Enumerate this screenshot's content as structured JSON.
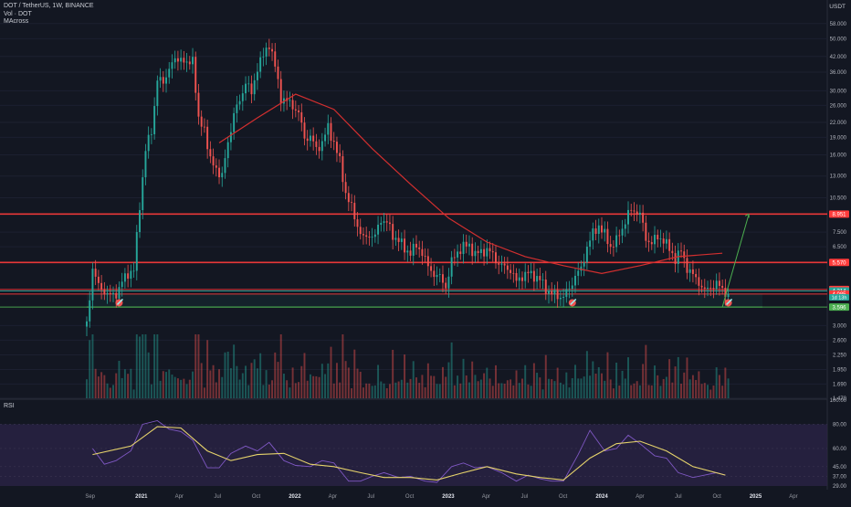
{
  "header": {
    "symbol_line": "DOT / TetherUS, 1W, BINANCE",
    "vol_line": "Vol · DOT",
    "ma_line": "MAcross",
    "currency": "USDT"
  },
  "rsi_label": "RSI",
  "colors": {
    "background": "#131722",
    "up": "#26a69a",
    "down": "#ef5350",
    "ma": "#d32f2f",
    "level_line": "#ff3b3b",
    "support": "#4caf50",
    "rsi_line": "#7e57c2",
    "rsi_ma": "#e6d36b",
    "rsi_band": "#2a2346"
  },
  "chart_data": [
    {
      "type": "candlestick",
      "title": "DOT / TetherUS, 1W, BINANCE",
      "y_scale": "log",
      "ylim": [
        1.47,
        68
      ],
      "y_ticks": [
        "58.000",
        "50.000",
        "42.000",
        "36.000",
        "30.000",
        "26.000",
        "22.000",
        "19.000",
        "16.000",
        "13.000",
        "10.500",
        "8.951",
        "7.500",
        "6.500",
        "5.570",
        "4.274",
        "4.214",
        "4.085",
        "3.000",
        "2.600",
        "2.250",
        "1.950",
        "1.690",
        "1.470"
      ],
      "x_ticks": [
        "Sep",
        "2021",
        "Apr",
        "Jul",
        "Oct",
        "2022",
        "Apr",
        "Jul",
        "Oct",
        "2023",
        "Apr",
        "Jul",
        "Oct",
        "2024",
        "Apr",
        "Jul",
        "Oct",
        "2025",
        "Apr"
      ],
      "levels": [
        {
          "label": "8.951",
          "value": 8.951,
          "color": "#ff3b3b"
        },
        {
          "label": "5.570",
          "value": 5.57,
          "color": "#ff3b3b"
        },
        {
          "label": "4.274",
          "value": 4.274,
          "color": "#ff3b3b"
        },
        {
          "label": "4.214",
          "value": 4.214,
          "color": "#26a69a"
        },
        {
          "label": "4.085",
          "value": 4.085,
          "color": "#ff3b3b"
        },
        {
          "label": "3.596",
          "value": 3.596,
          "color": "#4caf50"
        }
      ],
      "countdown_label": "1d 13h",
      "close_price_path": [
        [
          "2020-08-24",
          3.0
        ],
        [
          "2020-09-07",
          5.3
        ],
        [
          "2020-09-21",
          4.4
        ],
        [
          "2020-10-05",
          4.2
        ],
        [
          "2020-10-19",
          4.0
        ],
        [
          "2020-11-02",
          4.1
        ],
        [
          "2020-11-16",
          4.6
        ],
        [
          "2020-11-30",
          5.0
        ],
        [
          "2020-12-14",
          5.2
        ],
        [
          "2020-12-28",
          9.7
        ],
        [
          "2021-01-11",
          17.0
        ],
        [
          "2021-01-25",
          20.0
        ],
        [
          "2021-02-08",
          34.0
        ],
        [
          "2021-02-22",
          32.0
        ],
        [
          "2021-03-08",
          38.0
        ],
        [
          "2021-03-22",
          40.0
        ],
        [
          "2021-04-05",
          42.0
        ],
        [
          "2021-04-19",
          38.0
        ],
        [
          "2021-05-03",
          42.0
        ],
        [
          "2021-05-17",
          22.0
        ],
        [
          "2021-05-31",
          21.0
        ],
        [
          "2021-06-14",
          15.0
        ],
        [
          "2021-06-28",
          14.0
        ],
        [
          "2021-07-12",
          13.0
        ],
        [
          "2021-07-26",
          18.0
        ],
        [
          "2021-08-09",
          24.0
        ],
        [
          "2021-08-23",
          27.0
        ],
        [
          "2021-09-06",
          33.0
        ],
        [
          "2021-09-20",
          29.0
        ],
        [
          "2021-10-04",
          38.0
        ],
        [
          "2021-10-18",
          42.0
        ],
        [
          "2021-11-01",
          48.0
        ],
        [
          "2021-11-15",
          38.0
        ],
        [
          "2021-11-29",
          28.0
        ],
        [
          "2021-12-13",
          27.0
        ],
        [
          "2021-12-27",
          26.0
        ],
        [
          "2022-01-10",
          24.0
        ],
        [
          "2022-01-24",
          19.0
        ],
        [
          "2022-02-07",
          19.0
        ],
        [
          "2022-02-21",
          17.0
        ],
        [
          "2022-03-07",
          18.0
        ],
        [
          "2022-03-21",
          21.0
        ],
        [
          "2022-04-04",
          18.0
        ],
        [
          "2022-04-18",
          15.0
        ],
        [
          "2022-05-02",
          11.0
        ],
        [
          "2022-05-16",
          9.5
        ],
        [
          "2022-05-30",
          8.0
        ],
        [
          "2022-06-13",
          7.0
        ],
        [
          "2022-06-27",
          7.3
        ],
        [
          "2022-07-11",
          7.2
        ],
        [
          "2022-07-25",
          8.5
        ],
        [
          "2022-08-08",
          8.3
        ],
        [
          "2022-08-22",
          7.2
        ],
        [
          "2022-09-05",
          7.0
        ],
        [
          "2022-09-19",
          6.3
        ],
        [
          "2022-10-03",
          6.2
        ],
        [
          "2022-10-17",
          6.5
        ],
        [
          "2022-10-31",
          6.2
        ],
        [
          "2022-11-14",
          5.3
        ],
        [
          "2022-11-28",
          5.0
        ],
        [
          "2022-12-12",
          4.8
        ],
        [
          "2022-12-26",
          4.4
        ],
        [
          "2023-01-09",
          5.6
        ],
        [
          "2023-01-23",
          6.2
        ],
        [
          "2023-02-06",
          6.5
        ],
        [
          "2023-02-20",
          6.6
        ],
        [
          "2023-03-06",
          6.0
        ],
        [
          "2023-03-20",
          6.2
        ],
        [
          "2023-04-03",
          6.3
        ],
        [
          "2023-04-17",
          6.0
        ],
        [
          "2023-05-01",
          5.5
        ],
        [
          "2023-05-15",
          5.3
        ],
        [
          "2023-05-29",
          5.2
        ],
        [
          "2023-06-12",
          4.6
        ],
        [
          "2023-06-26",
          4.9
        ],
        [
          "2023-07-10",
          5.0
        ],
        [
          "2023-07-24",
          4.9
        ],
        [
          "2023-08-07",
          4.7
        ],
        [
          "2023-08-21",
          4.3
        ],
        [
          "2023-09-04",
          4.1
        ],
        [
          "2023-09-18",
          4.0
        ],
        [
          "2023-10-02",
          4.0
        ],
        [
          "2023-10-16",
          4.3
        ],
        [
          "2023-10-30",
          4.9
        ],
        [
          "2023-11-13",
          5.2
        ],
        [
          "2023-11-27",
          6.5
        ],
        [
          "2023-12-11",
          7.4
        ],
        [
          "2023-12-25",
          8.0
        ],
        [
          "2024-01-08",
          7.3
        ],
        [
          "2024-01-22",
          6.5
        ],
        [
          "2024-02-05",
          6.9
        ],
        [
          "2024-02-19",
          7.8
        ],
        [
          "2024-03-04",
          9.0
        ],
        [
          "2024-03-18",
          9.3
        ],
        [
          "2024-04-01",
          9.0
        ],
        [
          "2024-04-15",
          7.0
        ],
        [
          "2024-04-29",
          6.8
        ],
        [
          "2024-05-13",
          7.1
        ],
        [
          "2024-05-27",
          7.0
        ],
        [
          "2024-06-10",
          6.3
        ],
        [
          "2024-06-24",
          5.8
        ],
        [
          "2024-07-08",
          6.2
        ],
        [
          "2024-07-22",
          5.3
        ],
        [
          "2024-08-05",
          4.9
        ],
        [
          "2024-08-19",
          4.6
        ],
        [
          "2024-09-02",
          4.2
        ],
        [
          "2024-09-16",
          4.4
        ],
        [
          "2024-09-30",
          4.5
        ],
        [
          "2024-10-14",
          4.3
        ],
        [
          "2024-10-28",
          4.1
        ]
      ],
      "ma_series": [
        [
          "2021-07-05",
          18.0
        ],
        [
          "2021-10-04",
          23.0
        ],
        [
          "2022-01-03",
          29.0
        ],
        [
          "2022-04-04",
          25.0
        ],
        [
          "2022-07-04",
          17.0
        ],
        [
          "2022-10-03",
          12.0
        ],
        [
          "2023-01-02",
          8.6
        ],
        [
          "2023-04-03",
          6.8
        ],
        [
          "2023-07-03",
          5.9
        ],
        [
          "2023-10-02",
          5.4
        ],
        [
          "2024-01-01",
          5.0
        ],
        [
          "2024-04-01",
          5.4
        ],
        [
          "2024-07-01",
          5.9
        ],
        [
          "2024-10-14",
          6.1
        ]
      ],
      "projection": [
        [
          "2024-10-14",
          3.6
        ],
        [
          "2024-12-16",
          8.95
        ]
      ],
      "volume_series_name": "Vol · DOT"
    },
    {
      "type": "line",
      "title": "RSI",
      "ylim": [
        29,
        100
      ],
      "y_ticks": [
        "100.00",
        "80.00",
        "60.00",
        "45.00",
        "37.00",
        "29.00"
      ],
      "series": [
        {
          "values": [
            [
              "2020-09-07",
              60
            ],
            [
              "2020-10-05",
              47
            ],
            [
              "2020-11-02",
              50
            ],
            [
              "2020-12-07",
              58
            ],
            [
              "2021-01-04",
              80
            ],
            [
              "2021-02-08",
              83
            ],
            [
              "2021-03-08",
              76
            ],
            [
              "2021-04-05",
              74
            ],
            [
              "2021-05-03",
              67
            ],
            [
              "2021-06-07",
              44
            ],
            [
              "2021-07-05",
              44
            ],
            [
              "2021-08-02",
              56
            ],
            [
              "2021-09-06",
              62
            ],
            [
              "2021-10-04",
              58
            ],
            [
              "2021-11-01",
              65
            ],
            [
              "2021-12-06",
              50
            ],
            [
              "2022-01-03",
              46
            ],
            [
              "2022-02-07",
              45
            ],
            [
              "2022-03-07",
              50
            ],
            [
              "2022-04-04",
              48
            ],
            [
              "2022-05-09",
              33
            ],
            [
              "2022-06-06",
              33
            ],
            [
              "2022-07-04",
              37
            ],
            [
              "2022-08-01",
              40
            ],
            [
              "2022-09-05",
              36
            ],
            [
              "2022-10-03",
              37
            ],
            [
              "2022-11-07",
              33
            ],
            [
              "2022-12-05",
              32
            ],
            [
              "2023-01-09",
              45
            ],
            [
              "2023-02-06",
              48
            ],
            [
              "2023-03-06",
              44
            ],
            [
              "2023-04-03",
              45
            ],
            [
              "2023-05-08",
              40
            ],
            [
              "2023-06-12",
              33
            ],
            [
              "2023-07-10",
              38
            ],
            [
              "2023-08-07",
              35
            ],
            [
              "2023-09-04",
              33
            ],
            [
              "2023-10-02",
              33
            ],
            [
              "2023-11-06",
              55
            ],
            [
              "2023-12-04",
              75
            ],
            [
              "2024-01-08",
              58
            ],
            [
              "2024-02-05",
              60
            ],
            [
              "2024-03-04",
              71
            ],
            [
              "2024-04-01",
              64
            ],
            [
              "2024-05-06",
              54
            ],
            [
              "2024-06-03",
              52
            ],
            [
              "2024-07-01",
              40
            ],
            [
              "2024-08-05",
              36
            ],
            [
              "2024-09-02",
              38
            ],
            [
              "2024-09-30",
              40
            ],
            [
              "2024-10-21",
              38
            ]
          ]
        },
        {
          "values": [
            [
              "2020-09-07",
              55
            ],
            [
              "2020-12-07",
              62
            ],
            [
              "2021-02-08",
              78
            ],
            [
              "2021-04-05",
              77
            ],
            [
              "2021-06-07",
              58
            ],
            [
              "2021-08-02",
              50
            ],
            [
              "2021-10-04",
              55
            ],
            [
              "2021-12-06",
              56
            ],
            [
              "2022-02-07",
              47
            ],
            [
              "2022-04-04",
              45
            ],
            [
              "2022-06-06",
              40
            ],
            [
              "2022-08-01",
              36
            ],
            [
              "2022-10-03",
              36
            ],
            [
              "2022-12-05",
              34
            ],
            [
              "2023-02-06",
              40
            ],
            [
              "2023-04-03",
              45
            ],
            [
              "2023-06-12",
              39
            ],
            [
              "2023-08-07",
              36
            ],
            [
              "2023-10-02",
              34
            ],
            [
              "2023-12-04",
              52
            ],
            [
              "2024-02-05",
              64
            ],
            [
              "2024-04-01",
              66
            ],
            [
              "2024-06-03",
              58
            ],
            [
              "2024-08-05",
              45
            ],
            [
              "2024-10-21",
              38
            ]
          ]
        }
      ]
    }
  ]
}
